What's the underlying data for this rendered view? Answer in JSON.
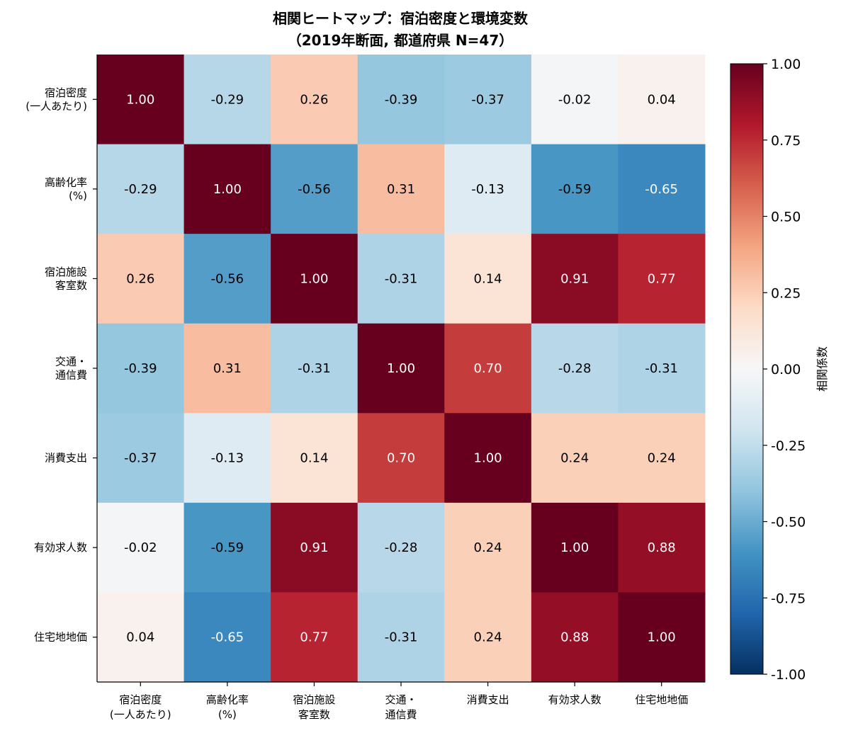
{
  "chart_data": {
    "type": "heatmap",
    "title_lines": [
      "相関ヒートマップ：宿泊密度と環境変数",
      "（2019年断面, 都道府県 N=47）"
    ],
    "row_labels": [
      [
        "宿泊密度",
        "(一人あたり)"
      ],
      [
        "高齢化率",
        "(%)"
      ],
      [
        "宿泊施設",
        "客室数"
      ],
      [
        "交通・",
        "通信費"
      ],
      [
        "消費支出"
      ],
      [
        "有効求人数"
      ],
      [
        "住宅地地価"
      ]
    ],
    "col_labels": [
      [
        "宿泊密度",
        "(一人あたり)"
      ],
      [
        "高齢化率",
        "(%)"
      ],
      [
        "宿泊施設",
        "客室数"
      ],
      [
        "交通・",
        "通信費"
      ],
      [
        "消費支出"
      ],
      [
        "有効求人数"
      ],
      [
        "住宅地地価"
      ]
    ],
    "values": [
      [
        1.0,
        -0.29,
        0.26,
        -0.39,
        -0.37,
        -0.02,
        0.04
      ],
      [
        -0.29,
        1.0,
        -0.56,
        0.31,
        -0.13,
        -0.59,
        -0.65
      ],
      [
        0.26,
        -0.56,
        1.0,
        -0.31,
        0.14,
        0.91,
        0.77
      ],
      [
        -0.39,
        0.31,
        -0.31,
        1.0,
        0.7,
        -0.28,
        -0.31
      ],
      [
        -0.37,
        -0.13,
        0.14,
        0.7,
        1.0,
        0.24,
        0.24
      ],
      [
        -0.02,
        -0.59,
        0.91,
        -0.28,
        0.24,
        1.0,
        0.88
      ],
      [
        0.04,
        -0.65,
        0.77,
        -0.31,
        0.24,
        0.88,
        1.0
      ]
    ],
    "colormap": "RdBu_r",
    "vmin": -1.0,
    "vmax": 1.0,
    "colorbar": {
      "label": "相関係数",
      "ticks": [
        1.0,
        0.75,
        0.5,
        0.25,
        0.0,
        -0.25,
        -0.5,
        -0.75,
        -1.0
      ],
      "tick_labels": [
        "1.00",
        "0.75",
        "0.50",
        "0.25",
        "0.00",
        "-0.25",
        "-0.50",
        "-0.75",
        "-1.00"
      ]
    },
    "grid": false
  }
}
